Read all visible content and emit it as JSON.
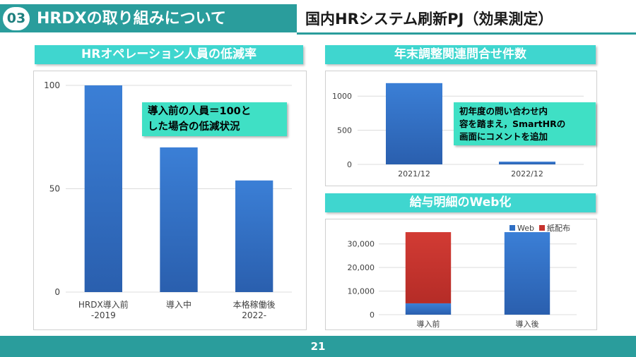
{
  "header": {
    "section_number": "03",
    "section_title": "HRDXの取り組みについて",
    "project_title": "国内HRシステム刷新PJ（効果測定）"
  },
  "panels": {
    "staff": {
      "title": "HRオペレーション人員の低減率",
      "callout": [
        "導入前の人員＝100と",
        "した場合の低減状況"
      ]
    },
    "inquiries": {
      "title": "年末調整関連問合せ件数",
      "callout": [
        "初年度の問い合わせ内",
        "容を踏まえ，SmartHRの",
        "画面にコメントを追加"
      ]
    },
    "payslip": {
      "title": "給与明細のWeb化"
    }
  },
  "footer": {
    "page_number": "21"
  },
  "colors": {
    "accent": "#2a9d9c",
    "title_bg": "#3fd6cf",
    "callout_bg": "#3fe0c5",
    "bar_blue": "#2f6fc4",
    "bar_red": "#c6332e"
  },
  "chart_data": [
    {
      "type": "bar",
      "title": "HRオペレーション人員の低減率",
      "categories": [
        [
          "HRDX導入前",
          "-2019"
        ],
        [
          "導入中"
        ],
        [
          "本格稼働後",
          "2022-"
        ]
      ],
      "values": [
        100,
        70,
        54
      ],
      "yticks": [
        "0",
        "50",
        "100"
      ],
      "ylim": [
        0,
        100
      ]
    },
    {
      "type": "bar",
      "title": "年末調整関連問合せ件数",
      "categories": [
        "2021/12",
        "2022/12"
      ],
      "values": [
        1190,
        40
      ],
      "yticks": [
        "0",
        "500",
        "1000"
      ],
      "ylim": [
        0,
        1250
      ]
    },
    {
      "type": "bar",
      "stacked": true,
      "title": "給与明細のWeb化",
      "categories": [
        "導入前",
        "導入後"
      ],
      "series": [
        {
          "name": "Web",
          "values": [
            4800,
            35000
          ]
        },
        {
          "name": "紙配布",
          "values": [
            30200,
            0
          ]
        }
      ],
      "yticks": [
        "0",
        "10,000",
        "20,000",
        "30,000"
      ],
      "ylim": [
        0,
        38000
      ]
    }
  ]
}
